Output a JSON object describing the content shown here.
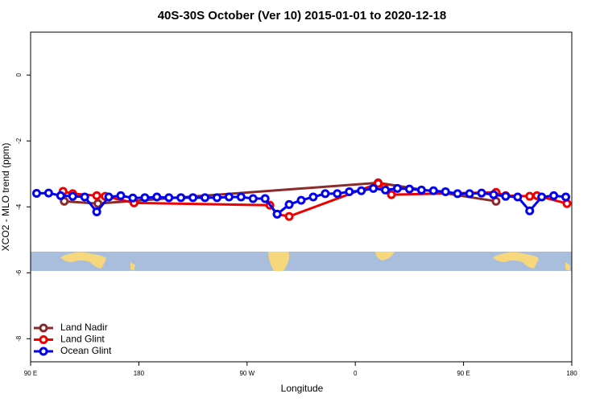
{
  "chart_data": {
    "type": "line",
    "title": "40S-30S October (Ver 10)   2015-01-01 to 2020-12-18",
    "x_label": "Longitude",
    "y_label": "XCO2 - MLO trend (ppm)",
    "xlim": [
      90,
      540
    ],
    "xticks": [
      {
        "value": 90,
        "label": "90 E"
      },
      {
        "value": 180,
        "label": "180"
      },
      {
        "value": 270,
        "label": "90 W"
      },
      {
        "value": 360,
        "label": "0"
      },
      {
        "value": 450,
        "label": "90 E"
      },
      {
        "value": 540,
        "label": "180"
      }
    ],
    "ylim": [
      -8.7,
      1.3
    ],
    "yticks": [
      0,
      -2,
      -4,
      -6,
      -8
    ],
    "legend": "bottom-left",
    "series": [
      {
        "name": "Land Nadir",
        "color": "#8b2a2a",
        "x": [
          118,
          146,
          379,
          477
        ],
        "values": [
          -3.83,
          -3.9,
          -3.27,
          -3.83
        ]
      },
      {
        "name": "Land Glint",
        "color": "#ee0000",
        "x": [
          117,
          125,
          145,
          152,
          176,
          289,
          295,
          305,
          379,
          384,
          390,
          477,
          485,
          505,
          511,
          536
        ],
        "values": [
          -3.53,
          -3.6,
          -3.66,
          -3.68,
          -3.88,
          -3.95,
          -4.22,
          -4.29,
          -3.29,
          -3.41,
          -3.63,
          -3.56,
          -3.66,
          -3.68,
          -3.66,
          -3.9
        ]
      },
      {
        "name": "Ocean Glint",
        "color": "#0000ee",
        "x": [
          95,
          105,
          115,
          125,
          135,
          145,
          155,
          165,
          175,
          185,
          195,
          205,
          215,
          225,
          235,
          245,
          255,
          265,
          275,
          285,
          295,
          305,
          315,
          325,
          335,
          345,
          355,
          365,
          375,
          385,
          395,
          405,
          415,
          425,
          435,
          445,
          455,
          465,
          475,
          485,
          495,
          505,
          515,
          525,
          535
        ],
        "values": [
          -3.59,
          -3.58,
          -3.66,
          -3.68,
          -3.7,
          -4.15,
          -3.7,
          -3.66,
          -3.73,
          -3.72,
          -3.7,
          -3.72,
          -3.72,
          -3.72,
          -3.72,
          -3.72,
          -3.7,
          -3.7,
          -3.75,
          -3.75,
          -4.22,
          -3.93,
          -3.8,
          -3.7,
          -3.6,
          -3.6,
          -3.54,
          -3.51,
          -3.44,
          -3.49,
          -3.44,
          -3.46,
          -3.49,
          -3.51,
          -3.54,
          -3.6,
          -3.6,
          -3.58,
          -3.63,
          -3.68,
          -3.7,
          -4.12,
          -3.7,
          -3.66,
          -3.7
        ]
      }
    ]
  }
}
